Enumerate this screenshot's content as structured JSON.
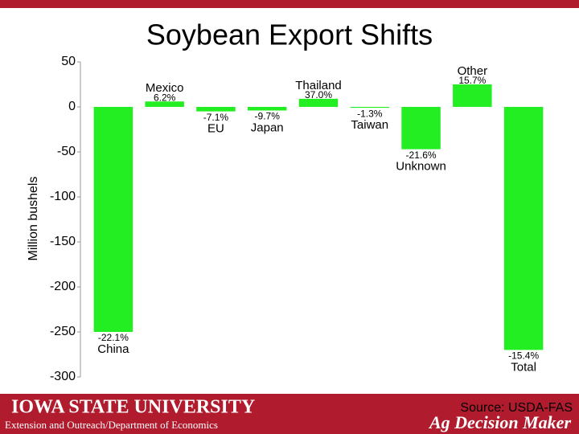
{
  "chart_data": {
    "type": "bar",
    "title": "Soybean Export Shifts",
    "y_label": "Million bushels",
    "categories": [
      "China",
      "Mexico",
      "EU",
      "Japan",
      "Thailand",
      "Taiwan",
      "Unknown",
      "Other",
      "Total"
    ],
    "values": [
      -250,
      6,
      -5,
      -4,
      9,
      -1,
      -47,
      25,
      -270
    ],
    "percent_labels": [
      "-22.1%",
      "6.2%",
      "-7.1%",
      "-9.7%",
      "37.0%",
      "-1.3%",
      "-21.6%",
      "15.7%",
      "-15.4%"
    ],
    "color": "#22ee22",
    "ylim": [
      -300,
      50
    ],
    "yticks": [
      50,
      0,
      -50,
      -100,
      -150,
      -200,
      -250,
      -300
    ],
    "grid": false
  },
  "footer": {
    "university": "IOWA STATE UNIVERSITY",
    "department": "Extension and Outreach/Department of Economics",
    "source": "Source: USDA-FAS",
    "brand": "Ag Decision Maker"
  }
}
